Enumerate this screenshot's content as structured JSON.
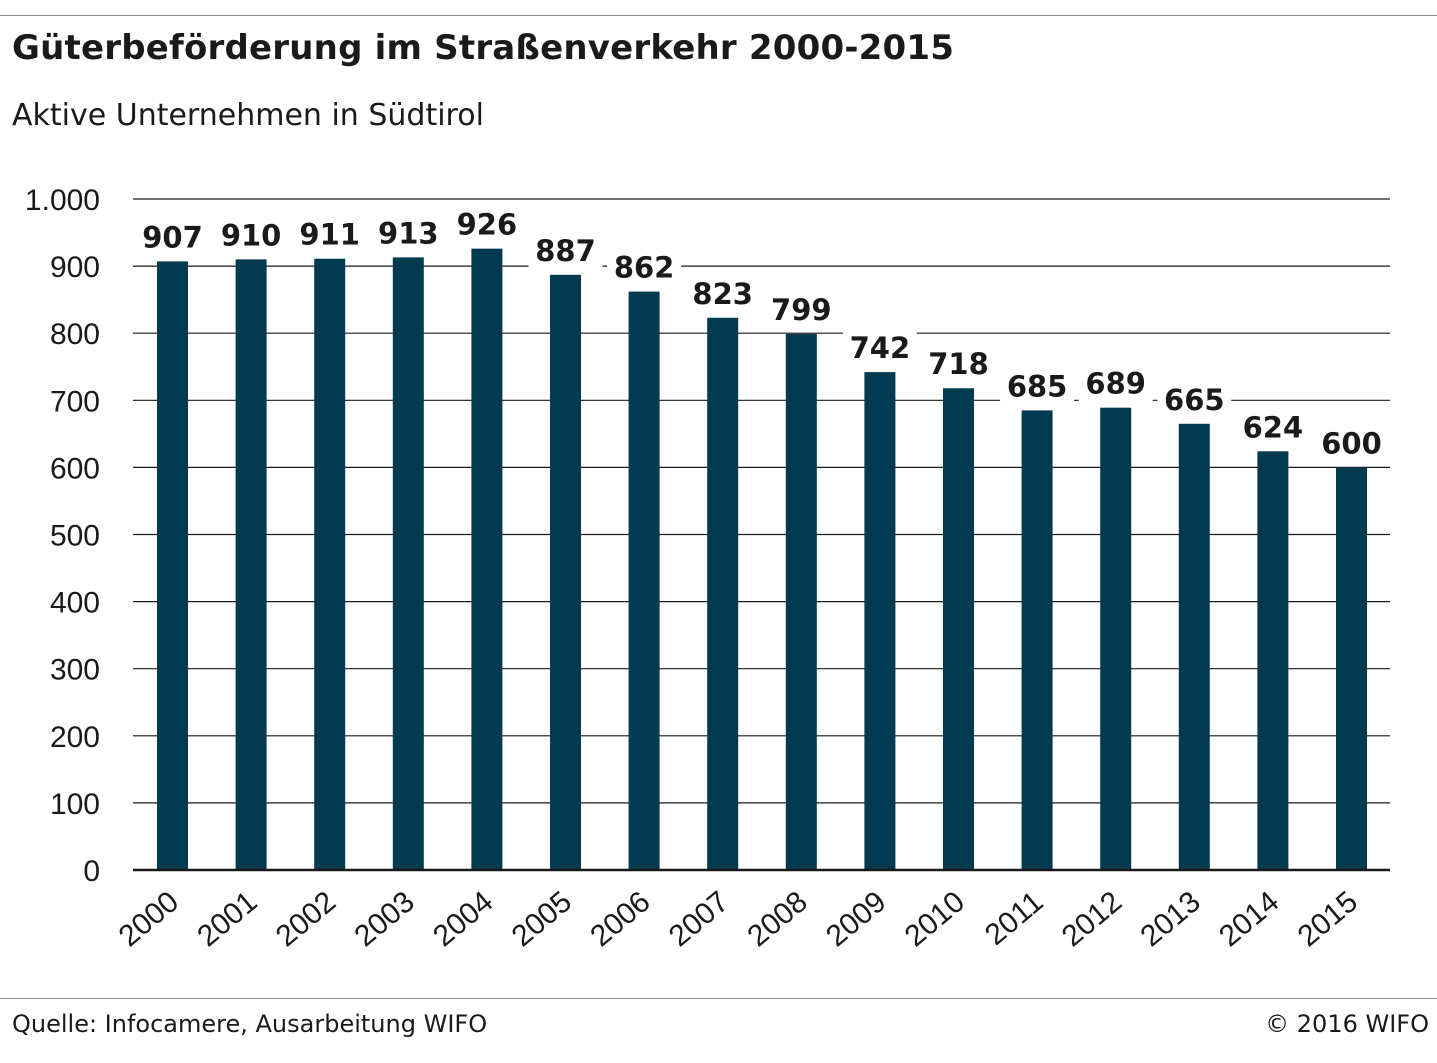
{
  "header": {
    "title": "Güterbeförderung im Straßenverkehr 2000-2015",
    "subtitle": "Aktive Unternehmen in Südtirol"
  },
  "footer": {
    "source": "Quelle: Infocamere, Ausarbeitung WIFO",
    "copyright": "© 2016 WIFO"
  },
  "colors": {
    "bar": "#023a50",
    "grid": "#1a1a1a",
    "text": "#1a1a1a"
  },
  "chart_data": {
    "type": "bar",
    "title": "Güterbeförderung im Straßenverkehr 2000-2015",
    "subtitle": "Aktive Unternehmen in Südtirol",
    "xlabel": "",
    "ylabel": "",
    "categories": [
      "2000",
      "2001",
      "2002",
      "2003",
      "2004",
      "2005",
      "2006",
      "2007",
      "2008",
      "2009",
      "2010",
      "2011",
      "2012",
      "2013",
      "2014",
      "2015"
    ],
    "values": [
      907,
      910,
      911,
      913,
      926,
      887,
      862,
      823,
      799,
      742,
      718,
      685,
      689,
      665,
      624,
      600
    ],
    "value_labels": [
      "907",
      "910",
      "911",
      "913",
      "926",
      "887",
      "862",
      "823",
      "799",
      "742",
      "718",
      "685",
      "689",
      "665",
      "624",
      "600"
    ],
    "ylim": [
      0,
      1000
    ],
    "y_ticks": [
      0,
      100,
      200,
      300,
      400,
      500,
      600,
      700,
      800,
      900,
      1000
    ],
    "y_tick_labels": [
      "0",
      "100",
      "200",
      "300",
      "400",
      "500",
      "600",
      "700",
      "800",
      "900",
      "1.000"
    ],
    "grid": true,
    "legend": "none"
  }
}
